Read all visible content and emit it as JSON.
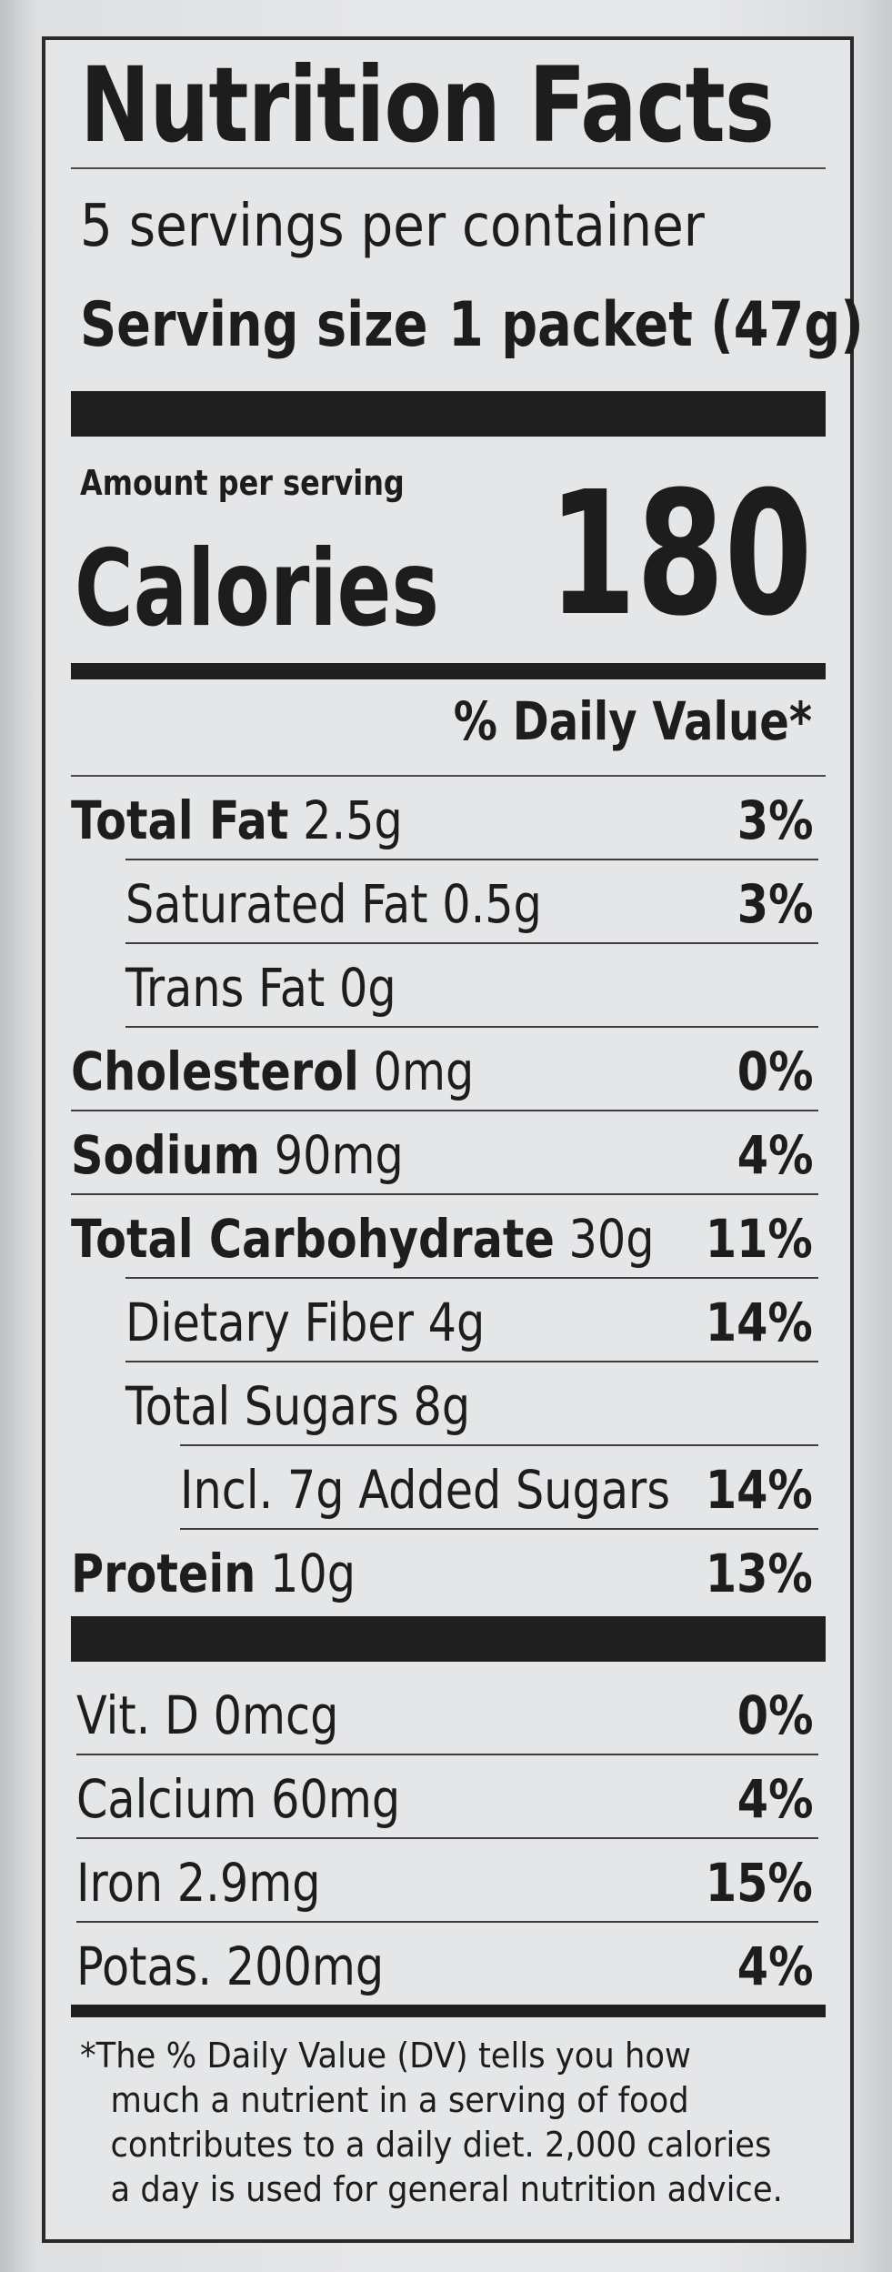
{
  "label": {
    "title": "Nutrition Facts",
    "servings_per_container": "5 servings per container",
    "serving_size_label": "Serving size",
    "serving_size_value": "1 packet (47g)",
    "amount_per_serving": "Amount per serving",
    "calories_label": "Calories",
    "calories_value": "180",
    "daily_value_header": "% Daily Value*"
  },
  "nutrients": [
    {
      "name": "Total Fat",
      "amount": "2.5g",
      "dv": "3%",
      "bold": true
    },
    {
      "name": "Saturated Fat",
      "amount": "0.5g",
      "dv": "3%",
      "bold": false
    },
    {
      "name": "Trans Fat",
      "amount": "0g",
      "dv": "",
      "bold": false
    },
    {
      "name": "Cholesterol",
      "amount": "0mg",
      "dv": "0%",
      "bold": true
    },
    {
      "name": "Sodium",
      "amount": "90mg",
      "dv": "4%",
      "bold": true
    },
    {
      "name": "Total Carbohydrate",
      "amount": "30g",
      "dv": "11%",
      "bold": true
    },
    {
      "name": "Dietary Fiber",
      "amount": "4g",
      "dv": "14%",
      "bold": false
    },
    {
      "name": "Total Sugars",
      "amount": "8g",
      "dv": "",
      "bold": false
    },
    {
      "name": "Incl. 7g Added Sugars",
      "amount": "",
      "dv": "14%",
      "bold": false
    },
    {
      "name": "Protein",
      "amount": "10g",
      "dv": "13%",
      "bold": true
    }
  ],
  "vitamins": [
    {
      "name": "Vit. D",
      "amount": "0mcg",
      "dv": "0%"
    },
    {
      "name": "Calcium",
      "amount": "60mg",
      "dv": "4%"
    },
    {
      "name": "Iron",
      "amount": "2.9mg",
      "dv": "15%"
    },
    {
      "name": "Potas.",
      "amount": "200mg",
      "dv": "4%"
    }
  ],
  "footnote": [
    "*The % Daily Value (DV) tells you how",
    "much a nutrient in a serving of food",
    "contributes to a daily diet. 2,000 calories",
    "a day is used for general nutrition advice."
  ]
}
